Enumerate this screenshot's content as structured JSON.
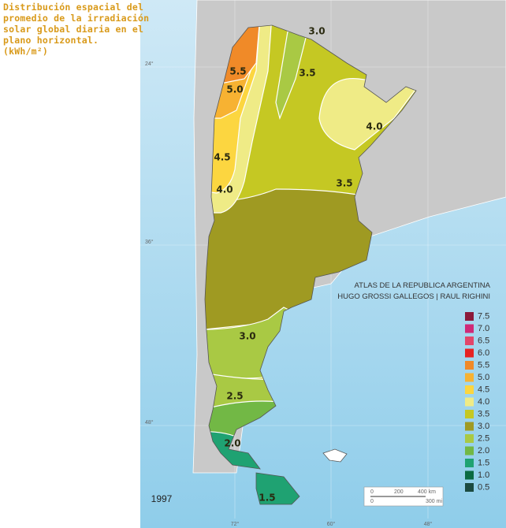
{
  "title_lines": [
    "Distribución espacial del",
    "promedio de la irradiación",
    "solar global diaria en el",
    "plano horizontal.",
    "(kWh/m²)"
  ],
  "contour_labels": [
    "3.0",
    "3.5",
    "5.5",
    "5.0",
    "4.0",
    "4.5",
    "3.5",
    "4.0",
    "3.0",
    "2.5",
    "2.0",
    "1.5"
  ],
  "credit_lines": [
    "ATLAS DE LA REPUBLICA ARGENTINA",
    "HUGO GROSSI GALLEGOS | RAUL RIGHINI"
  ],
  "year": "1997",
  "latitude_labels": [
    "24°",
    "36°",
    "48°"
  ],
  "longitude_labels": [
    "72°",
    "60°",
    "48°"
  ],
  "scale_labels": [
    "0",
    "200",
    "400 km",
    "0",
    "300 mi"
  ],
  "legend": [
    {
      "label": "7.5",
      "color": "#8b1a3a"
    },
    {
      "label": "7.0",
      "color": "#cf2a78"
    },
    {
      "label": "6.5",
      "color": "#e2466a"
    },
    {
      "label": "6.0",
      "color": "#e62222"
    },
    {
      "label": "5.5",
      "color": "#f08a28"
    },
    {
      "label": "5.0",
      "color": "#f7b232"
    },
    {
      "label": "4.5",
      "color": "#fcd640"
    },
    {
      "label": "4.0",
      "color": "#efeb86"
    },
    {
      "label": "3.5",
      "color": "#c5c823"
    },
    {
      "label": "3.0",
      "color": "#9f9a22"
    },
    {
      "label": "2.5",
      "color": "#a9c944"
    },
    {
      "label": "2.0",
      "color": "#72b845"
    },
    {
      "label": "1.5",
      "color": "#1fa272"
    },
    {
      "label": "1.0",
      "color": "#0b6b42"
    },
    {
      "label": "0.5",
      "color": "#1b4a40"
    }
  ]
}
